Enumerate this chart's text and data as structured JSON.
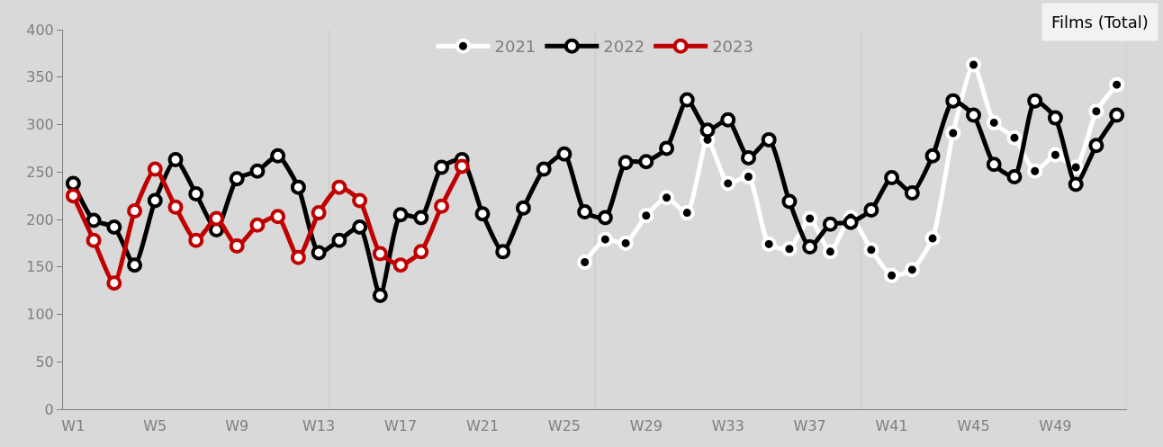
{
  "chart_data": {
    "type": "line",
    "title": "Films (Total)",
    "categories": [
      "W1",
      null,
      null,
      null,
      "W5",
      null,
      null,
      null,
      "W9",
      null,
      null,
      null,
      "W13",
      null,
      null,
      null,
      "W17",
      null,
      null,
      null,
      "W21",
      null,
      null,
      null,
      "W25",
      null,
      null,
      null,
      "W29",
      null,
      null,
      null,
      "W33",
      null,
      null,
      null,
      "W37",
      null,
      null,
      null,
      "W41",
      null,
      null,
      null,
      "W45",
      null,
      null,
      null,
      "W49",
      null,
      null,
      null
    ],
    "series": [
      {
        "name": "2021",
        "color": "#ffffff",
        "values": [
          null,
          null,
          null,
          null,
          null,
          null,
          null,
          null,
          null,
          null,
          null,
          null,
          null,
          null,
          null,
          null,
          null,
          null,
          null,
          null,
          null,
          null,
          null,
          null,
          null,
          155,
          179,
          175,
          204,
          223,
          207,
          284,
          238,
          245,
          174,
          169,
          201,
          166,
          202,
          168,
          141,
          147,
          180,
          291,
          363,
          302,
          286,
          251,
          268,
          255,
          314,
          342
        ]
      },
      {
        "name": "2022",
        "color": "#000000",
        "values": [
          238,
          199,
          192,
          152,
          220,
          263,
          227,
          189,
          243,
          251,
          267,
          234,
          165,
          178,
          192,
          120,
          205,
          202,
          255,
          263,
          206,
          166,
          212,
          253,
          269,
          208,
          202,
          260,
          261,
          275,
          326,
          294,
          305,
          265,
          284,
          219,
          171,
          195,
          197,
          210,
          244,
          228,
          267,
          325,
          310,
          258,
          245,
          325,
          307,
          237,
          278,
          310
        ]
      },
      {
        "name": "2023",
        "color": "#c00000",
        "values": [
          225,
          178,
          133,
          209,
          253,
          213,
          178,
          201,
          172,
          194,
          203,
          160,
          207,
          234,
          220,
          164,
          152,
          166,
          214,
          256,
          null,
          null,
          null,
          null,
          null,
          null,
          null,
          null,
          null,
          null,
          null,
          null,
          null,
          null,
          null,
          null,
          null,
          null,
          null,
          null,
          null,
          null,
          null,
          null,
          null,
          null,
          null,
          null,
          null,
          null,
          null,
          null
        ]
      }
    ],
    "ylim": [
      0,
      400
    ],
    "yticks": [
      0,
      50,
      100,
      150,
      200,
      250,
      300,
      350,
      400
    ],
    "grid": "x",
    "legend": "top",
    "marker": "circle",
    "line_style": "solid"
  }
}
